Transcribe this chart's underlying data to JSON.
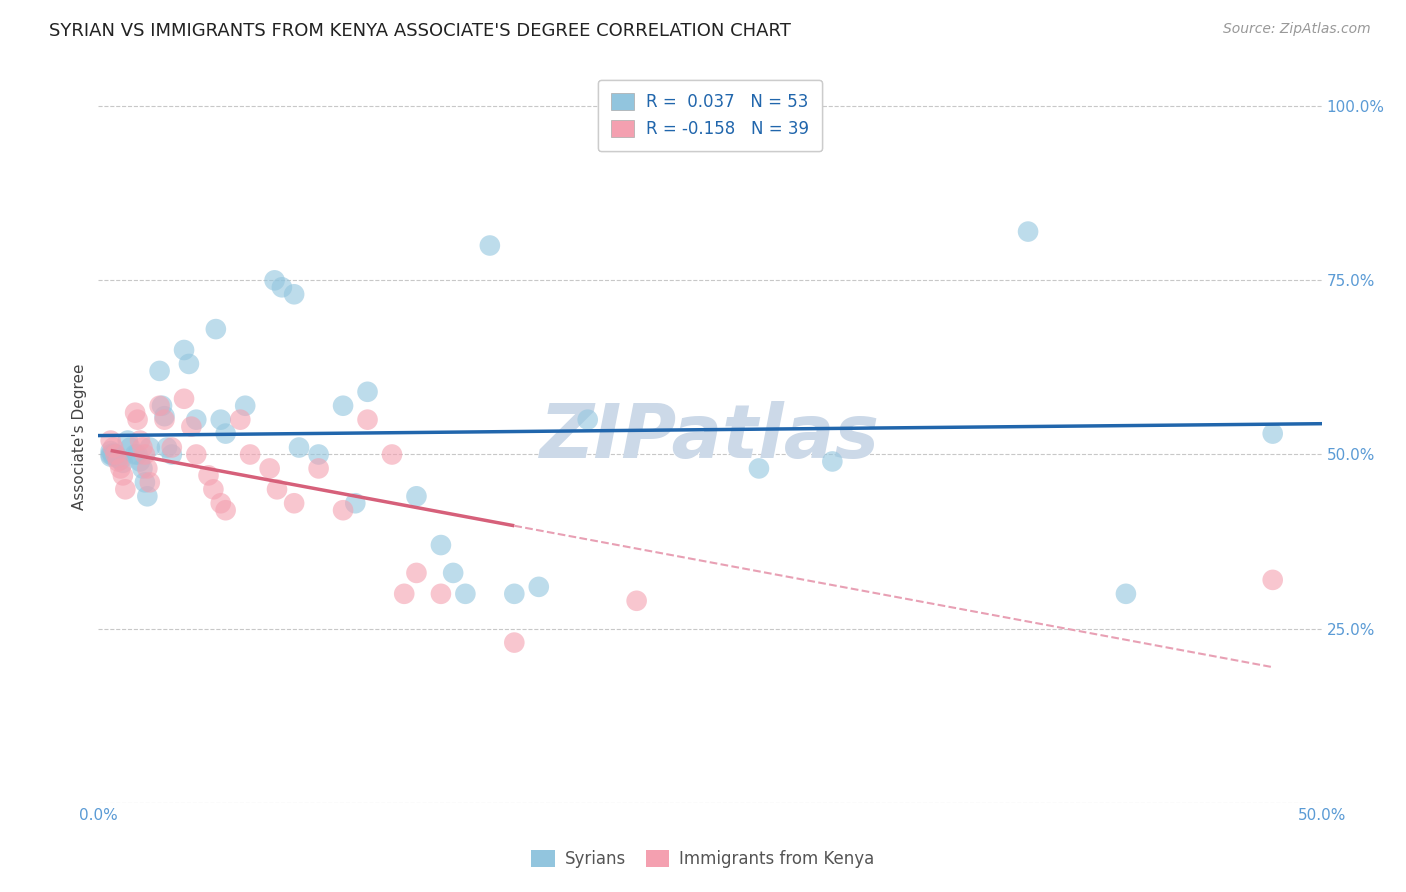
{
  "title": "SYRIAN VS IMMIGRANTS FROM KENYA ASSOCIATE'S DEGREE CORRELATION CHART",
  "source": "Source: ZipAtlas.com",
  "ylabel": "Associate's Degree",
  "xlim": [
    0.0,
    0.5
  ],
  "ylim": [
    0.0,
    1.05
  ],
  "yticks": [
    0.25,
    0.5,
    0.75,
    1.0
  ],
  "ytick_labels": [
    "25.0%",
    "50.0%",
    "75.0%",
    "100.0%"
  ],
  "watermark": "ZIPatlas",
  "legend_blue_r": "R =  0.037",
  "legend_blue_n": "N = 53",
  "legend_pink_r": "R = -0.158",
  "legend_pink_n": "N = 39",
  "syrians_x": [
    0.005,
    0.005,
    0.005,
    0.006,
    0.006,
    0.006,
    0.007,
    0.008,
    0.009,
    0.01,
    0.012,
    0.013,
    0.015,
    0.016,
    0.017,
    0.018,
    0.019,
    0.02,
    0.021,
    0.025,
    0.026,
    0.027,
    0.028,
    0.03,
    0.035,
    0.037,
    0.04,
    0.048,
    0.05,
    0.052,
    0.06,
    0.072,
    0.075,
    0.08,
    0.082,
    0.09,
    0.1,
    0.105,
    0.11,
    0.13,
    0.14,
    0.145,
    0.15,
    0.16,
    0.17,
    0.18,
    0.2,
    0.25,
    0.27,
    0.3,
    0.38,
    0.42,
    0.48
  ],
  "syrians_y": [
    0.505,
    0.5,
    0.497,
    0.5,
    0.502,
    0.498,
    0.5,
    0.495,
    0.492,
    0.488,
    0.52,
    0.51,
    0.5,
    0.5,
    0.49,
    0.48,
    0.46,
    0.44,
    0.51,
    0.62,
    0.57,
    0.555,
    0.51,
    0.5,
    0.65,
    0.63,
    0.55,
    0.68,
    0.55,
    0.53,
    0.57,
    0.75,
    0.74,
    0.73,
    0.51,
    0.5,
    0.57,
    0.43,
    0.59,
    0.44,
    0.37,
    0.33,
    0.3,
    0.8,
    0.3,
    0.31,
    0.55,
    0.96,
    0.48,
    0.49,
    0.82,
    0.3,
    0.53
  ],
  "kenya_x": [
    0.005,
    0.006,
    0.007,
    0.008,
    0.009,
    0.01,
    0.011,
    0.015,
    0.016,
    0.017,
    0.018,
    0.019,
    0.02,
    0.021,
    0.025,
    0.027,
    0.03,
    0.035,
    0.038,
    0.04,
    0.045,
    0.047,
    0.05,
    0.052,
    0.058,
    0.062,
    0.07,
    0.073,
    0.08,
    0.09,
    0.1,
    0.11,
    0.12,
    0.125,
    0.13,
    0.14,
    0.17,
    0.22,
    0.48
  ],
  "kenya_y": [
    0.52,
    0.51,
    0.5,
    0.49,
    0.48,
    0.47,
    0.45,
    0.56,
    0.55,
    0.52,
    0.51,
    0.5,
    0.48,
    0.46,
    0.57,
    0.55,
    0.51,
    0.58,
    0.54,
    0.5,
    0.47,
    0.45,
    0.43,
    0.42,
    0.55,
    0.5,
    0.48,
    0.45,
    0.43,
    0.48,
    0.42,
    0.55,
    0.5,
    0.3,
    0.33,
    0.3,
    0.23,
    0.29,
    0.32
  ],
  "blue_scatter_color": "#92c5de",
  "pink_scatter_color": "#f4a0b0",
  "blue_line_color": "#2166ac",
  "pink_line_color": "#d6607a",
  "pink_dashed_color": "#e8a0b4",
  "background_color": "#ffffff",
  "grid_color": "#c8c8c8",
  "title_color": "#222222",
  "axis_tick_color": "#5b9bd5",
  "watermark_color": "#ccd9e8",
  "legend_text_color": "#2166ac"
}
